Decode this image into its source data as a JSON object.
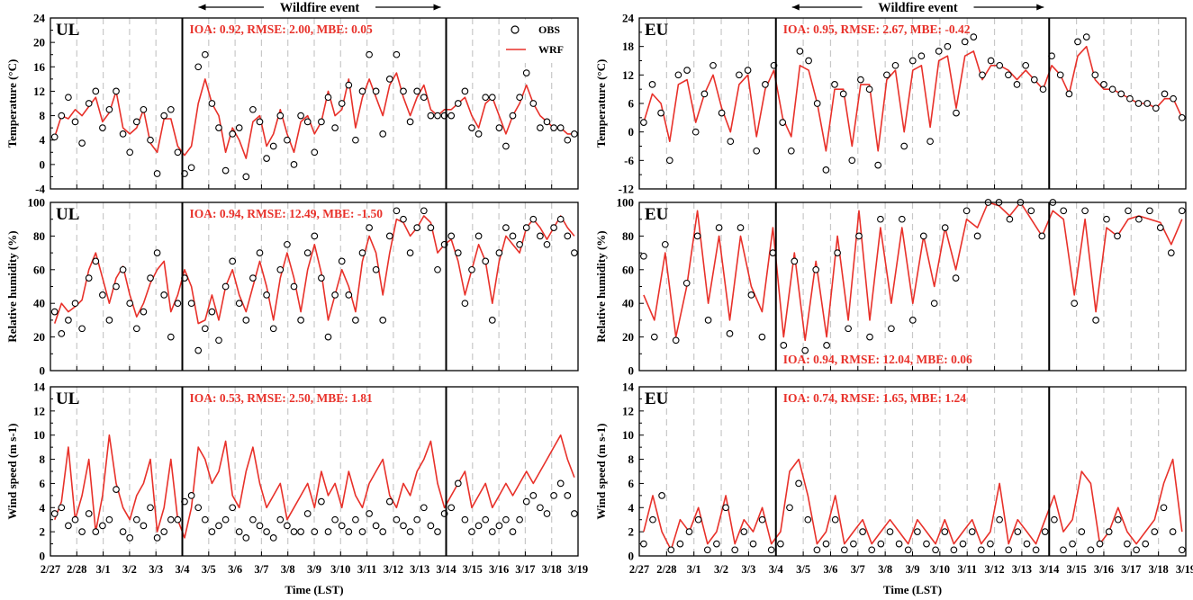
{
  "figure": {
    "event_label": "Wildfire event",
    "xlabel": "Time (LST)"
  },
  "legend": {
    "obs_label": "OBS",
    "wrf_label": "WRF"
  },
  "colors": {
    "wrf": "#e8312a",
    "obs": "#000000",
    "grid": "#c8c8c8"
  },
  "chart_data": {
    "type": "line",
    "x_tick_labels": [
      "2/27",
      "2/28",
      "3/1",
      "3/2",
      "3/3",
      "3/4",
      "3/5",
      "3/6",
      "3/7",
      "3/8",
      "3/9",
      "3/10",
      "3/11",
      "3/12",
      "3/13",
      "3/14",
      "3/15",
      "3/16",
      "3/17",
      "3/18",
      "3/19"
    ],
    "event_days": [
      5,
      15
    ],
    "columns": [
      {
        "site": "UL",
        "panels": [
          {
            "site": "UL",
            "variable": "temperature",
            "ylabel": "Temperature (°C)",
            "ylim": [
              -4,
              24
            ],
            "yticks": [
              "-4",
              "0",
              "4",
              "8",
              "12",
              "16",
              "20",
              "24"
            ],
            "stats": "IOA: 0.92, RMSE: 2.00, MBE: 0.05",
            "stats_pos": "top",
            "obs_series": [
              4.5,
              8,
              11,
              7,
              3.5,
              10,
              12,
              6,
              9,
              12,
              5,
              2,
              7,
              9,
              4,
              -1.5,
              8,
              9,
              2,
              -1.5,
              -0.5,
              16,
              18,
              10,
              6,
              -1,
              5,
              6,
              -2,
              9,
              7,
              1,
              3,
              8,
              4,
              0,
              8,
              7,
              2,
              7,
              11,
              6,
              10,
              13,
              4,
              12,
              18,
              12,
              5,
              14,
              18,
              12,
              7,
              12,
              11,
              8,
              8,
              8,
              8,
              10,
              12,
              6,
              5,
              11,
              11,
              6,
              3,
              8,
              11,
              15,
              10,
              6,
              7,
              6,
              6,
              4,
              5
            ],
            "wrf_series": [
              4.5,
              8,
              7.5,
              9,
              8,
              9.5,
              11,
              7,
              8.5,
              12,
              6,
              5,
              6,
              9,
              3.5,
              2,
              7.5,
              7.5,
              3,
              1.5,
              3,
              10,
              14,
              10,
              8,
              2,
              6,
              4,
              1,
              7,
              8,
              3,
              5,
              9,
              5,
              2,
              7,
              8,
              5,
              7,
              12,
              8,
              9,
              14,
              6,
              11,
              14,
              11,
              8,
              13,
              15,
              11,
              8,
              11,
              13,
              9,
              8,
              9,
              9,
              10,
              11,
              8,
              6,
              10,
              11,
              8,
              5,
              8,
              10,
              13,
              10,
              8,
              7,
              6,
              6,
              5,
              5
            ]
          },
          {
            "site": "UL",
            "variable": "relative_humidity",
            "ylabel": "Relative humidity (%)",
            "ylim": [
              0,
              100
            ],
            "yticks": [
              "0",
              "20",
              "40",
              "60",
              "80",
              "100"
            ],
            "stats": "IOA: 0.94, RMSE: 12.49, MBE: -1.50",
            "stats_pos": "top",
            "obs_series": [
              35,
              22,
              30,
              40,
              25,
              55,
              65,
              45,
              30,
              50,
              60,
              40,
              25,
              35,
              55,
              70,
              45,
              20,
              40,
              55,
              40,
              12,
              25,
              35,
              18,
              50,
              65,
              40,
              30,
              55,
              70,
              45,
              25,
              60,
              75,
              50,
              30,
              70,
              80,
              55,
              20,
              45,
              65,
              45,
              30,
              70,
              85,
              60,
              30,
              80,
              95,
              90,
              70,
              85,
              95,
              85,
              60,
              75,
              80,
              70,
              40,
              60,
              80,
              65,
              30,
              70,
              85,
              80,
              75,
              85,
              90,
              80,
              75,
              85,
              90,
              80,
              70
            ],
            "wrf_series": [
              28,
              40,
              35,
              38,
              42,
              60,
              70,
              55,
              40,
              55,
              62,
              45,
              32,
              40,
              52,
              60,
              65,
              35,
              45,
              60,
              50,
              28,
              30,
              45,
              30,
              50,
              60,
              45,
              35,
              50,
              65,
              50,
              30,
              55,
              70,
              55,
              35,
              60,
              75,
              58,
              30,
              45,
              60,
              50,
              35,
              65,
              80,
              70,
              45,
              70,
              90,
              88,
              80,
              85,
              92,
              88,
              70,
              75,
              78,
              65,
              45,
              60,
              75,
              65,
              40,
              65,
              80,
              75,
              70,
              85,
              90,
              85,
              78,
              85,
              92,
              85,
              80
            ]
          },
          {
            "site": "UL",
            "variable": "wind_speed",
            "ylabel": "Wind speed (m s-1)",
            "ylim": [
              0,
              14
            ],
            "yticks": [
              "0",
              "2",
              "4",
              "6",
              "8",
              "10",
              "12",
              "14"
            ],
            "stats": "IOA: 0.53, RMSE: 2.50, MBE: 1.81",
            "stats_pos": "top",
            "obs_series": [
              3.5,
              4,
              2.5,
              3,
              2,
              3.5,
              2,
              2.5,
              3,
              5.5,
              2,
              1.5,
              3,
              2.5,
              4,
              1.5,
              2,
              3,
              3,
              4.5,
              5,
              4,
              3,
              2,
              2.5,
              3,
              4,
              2,
              1.5,
              3,
              2.5,
              2,
              1.5,
              3,
              2.5,
              2,
              2,
              3.5,
              2,
              4.5,
              2,
              3,
              2.5,
              2,
              3,
              2,
              3.5,
              2.5,
              2,
              4.5,
              3,
              2.5,
              2,
              3,
              4,
              2.5,
              2,
              3.5,
              4,
              6,
              3,
              2,
              2.5,
              3,
              2,
              2.5,
              3,
              2,
              3,
              4.5,
              5,
              4,
              3.5,
              5,
              6,
              5,
              3.5
            ],
            "wrf_series": [
              3,
              4.5,
              9,
              3,
              5,
              8,
              2,
              5,
              10,
              6,
              4,
              3,
              5,
              6,
              8,
              2,
              4,
              8,
              3,
              1.5,
              4,
              9,
              8,
              6,
              7,
              9.5,
              5,
              4,
              7,
              9,
              6,
              4,
              5,
              6,
              3,
              4,
              5,
              6,
              4,
              7,
              5,
              6,
              4,
              7,
              5,
              4,
              6,
              7,
              8,
              5,
              4,
              6,
              5,
              7,
              8,
              9.5,
              6,
              4,
              5,
              6,
              7,
              4,
              5,
              6,
              4,
              5,
              6,
              5,
              6,
              7,
              6,
              7,
              8,
              9,
              10,
              8,
              6.5
            ]
          }
        ]
      },
      {
        "site": "EU",
        "panels": [
          {
            "site": "EU",
            "variable": "temperature",
            "ylabel": "Temperature (°C)",
            "ylim": [
              -12,
              24
            ],
            "yticks": [
              "-12",
              "-6",
              "0",
              "6",
              "12",
              "18",
              "24"
            ],
            "stats": "IOA: 0.95, RMSE: 2.67, MBE: -0.42",
            "stats_pos": "top",
            "obs_series": [
              2,
              10,
              4,
              -6,
              12,
              13,
              0,
              8,
              14,
              4,
              -2,
              12,
              13,
              -4,
              10,
              14,
              2,
              -4,
              17,
              15,
              6,
              -8,
              10,
              8,
              -6,
              11,
              9,
              -7,
              12,
              14,
              -3,
              15,
              16,
              -2,
              17,
              18,
              4,
              19,
              20,
              12,
              15,
              14,
              12,
              10,
              14,
              11,
              9,
              16,
              12,
              8,
              19,
              20,
              12,
              10,
              9,
              8,
              7,
              6,
              6,
              5,
              8,
              7,
              3
            ],
            "wrf_series": [
              2,
              8,
              6,
              -2,
              10,
              11,
              2,
              8,
              12,
              5,
              0,
              10,
              12,
              -1,
              9,
              13,
              3,
              -1,
              14,
              13,
              6,
              -4,
              9,
              9,
              -3,
              10,
              10,
              -4,
              11,
              13,
              0,
              13,
              14,
              1,
              15,
              16,
              5,
              16,
              17,
              11,
              14,
              14,
              13,
              11,
              13,
              11,
              9,
              14,
              12,
              8,
              16,
              18,
              11,
              9,
              9,
              8,
              7,
              6,
              6,
              5,
              7,
              7,
              3
            ]
          },
          {
            "site": "EU",
            "variable": "relative_humidity",
            "ylabel": "Relative humidity (%)",
            "ylim": [
              0,
              100
            ],
            "yticks": [
              "0",
              "20",
              "40",
              "60",
              "80",
              "100"
            ],
            "stats": "IOA: 0.94, RMSE: 12.04, MBE: 0.06",
            "stats_pos": "bottom",
            "obs_series": [
              68,
              20,
              75,
              18,
              52,
              80,
              30,
              85,
              22,
              85,
              45,
              20,
              70,
              15,
              65,
              12,
              60,
              15,
              70,
              25,
              80,
              20,
              90,
              25,
              90,
              30,
              80,
              40,
              85,
              55,
              95,
              80,
              100,
              100,
              90,
              100,
              95,
              80,
              100,
              95,
              40,
              95,
              30,
              90,
              80,
              95,
              90,
              95,
              85,
              70,
              95
            ],
            "wrf_series": [
              45,
              30,
              70,
              20,
              50,
              95,
              40,
              80,
              30,
              80,
              50,
              35,
              85,
              20,
              70,
              18,
              65,
              20,
              80,
              30,
              95,
              30,
              85,
              40,
              85,
              40,
              80,
              50,
              85,
              60,
              90,
              85,
              100,
              98,
              92,
              100,
              90,
              80,
              95,
              90,
              45,
              90,
              35,
              85,
              80,
              90,
              92,
              90,
              88,
              75,
              90
            ]
          },
          {
            "site": "EU",
            "variable": "wind_speed",
            "ylabel": "Wind speed (m s-1)",
            "ylim": [
              0,
              14
            ],
            "yticks": [
              "0",
              "2",
              "4",
              "6",
              "8",
              "10",
              "12",
              "14"
            ],
            "stats": "IOA: 0.74, RMSE: 1.65, MBE: 1.24",
            "stats_pos": "top",
            "obs_series": [
              1,
              3,
              5,
              0.5,
              1,
              2,
              3,
              0.5,
              1,
              4,
              0.5,
              2,
              1,
              3,
              0.5,
              1,
              4,
              6,
              3,
              0.5,
              1,
              3,
              0.5,
              1,
              2,
              0.5,
              1,
              2,
              1,
              0.5,
              2,
              1,
              0.5,
              2,
              0.5,
              1,
              2,
              0.5,
              1,
              3,
              0.5,
              2,
              1,
              0.5,
              2,
              3,
              0.5,
              1,
              2,
              0.5,
              1,
              2,
              3,
              1,
              0.5,
              1,
              2,
              4,
              2,
              0.5
            ],
            "wrf_series": [
              2,
              5,
              2,
              0.5,
              3,
              2,
              4,
              1,
              2,
              5,
              1,
              3,
              2,
              4,
              1,
              2,
              7,
              8,
              5,
              1,
              2,
              5,
              1,
              2,
              3,
              1,
              2,
              3,
              2,
              1,
              3,
              2,
              1,
              3,
              1,
              2,
              3,
              1,
              2,
              6,
              1,
              3,
              2,
              1,
              3,
              5,
              2,
              3,
              7,
              6,
              1,
              2,
              4,
              2,
              1,
              2,
              3,
              6,
              8,
              2
            ]
          }
        ]
      }
    ]
  }
}
